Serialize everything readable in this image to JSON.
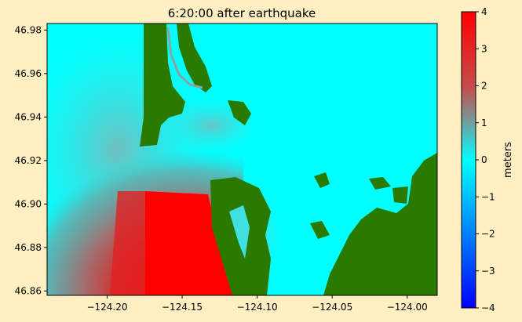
{
  "chart_data": {
    "type": "heatmap",
    "title": "6:20:00 after earthquake",
    "xlim": [
      -124.24,
      -123.98
    ],
    "ylim": [
      46.858,
      46.983
    ],
    "x_ticks": [
      -124.2,
      -124.15,
      -124.1,
      -124.05,
      -124.0
    ],
    "x_tick_labels": [
      "−124.20",
      "−124.15",
      "−124.10",
      "−124.05",
      "−124.00"
    ],
    "y_ticks": [
      46.86,
      46.88,
      46.9,
      46.92,
      46.94,
      46.96,
      46.98
    ],
    "y_tick_labels": [
      "46.86",
      "46.88",
      "46.90",
      "46.92",
      "46.94",
      "46.96",
      "46.98"
    ],
    "colorbar": {
      "label": "meters",
      "vmin": -4,
      "vmax": 4,
      "ticks": [
        4,
        3,
        2,
        1,
        0,
        -1,
        -2,
        -3,
        -4
      ],
      "tick_labels": [
        "4",
        "3",
        "2",
        "1",
        "0",
        "−1",
        "−2",
        "−3",
        "−4"
      ],
      "colors": [
        "#0000ff",
        "#00ffff",
        "#ff0000"
      ]
    },
    "land_color": "#2a7a00",
    "water_color": "#00ffff",
    "high_value_color": "#ff0000"
  }
}
